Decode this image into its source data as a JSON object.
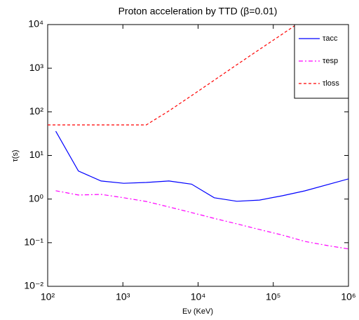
{
  "chart_data": {
    "type": "line",
    "title": "Proton acceleration by TTD (β=0.01)",
    "x_label": "Eν (KeV)",
    "y_label": "τ(s)",
    "xscale": "log",
    "yscale": "log",
    "grid": false,
    "legend": "upper right",
    "xlim": [
      100,
      1000000
    ],
    "ylim": [
      0.01,
      10000
    ],
    "xticks": [
      {
        "value": 100,
        "label": "10²"
      },
      {
        "value": 1000,
        "label": "10³"
      },
      {
        "value": 10000,
        "label": "10⁴"
      },
      {
        "value": 100000,
        "label": "10⁵"
      },
      {
        "value": 1000000,
        "label": "10⁶"
      }
    ],
    "yticks": [
      {
        "value": 0.01,
        "label": "10⁻²"
      },
      {
        "value": 0.1,
        "label": "10⁻¹"
      },
      {
        "value": 1,
        "label": "10⁰"
      },
      {
        "value": 10,
        "label": "10¹"
      },
      {
        "value": 100,
        "label": "10²"
      },
      {
        "value": 1000,
        "label": "10³"
      },
      {
        "value": 10000,
        "label": "10⁴"
      }
    ],
    "series": [
      {
        "name": "τacc",
        "color": "#0000ff",
        "dash": "solid",
        "x": [
          128,
          256,
          512,
          1024,
          2048,
          4096,
          8192,
          16384,
          32768,
          65536,
          131072,
          262144,
          1000000
        ],
        "values": [
          36,
          4.4,
          2.6,
          2.3,
          2.4,
          2.6,
          2.2,
          1.07,
          0.89,
          0.95,
          1.19,
          1.54,
          2.9
        ]
      },
      {
        "name": "τesp",
        "color": "#ff00ff",
        "dash": "dashdot",
        "x": [
          128,
          256,
          512,
          1024,
          2048,
          4096,
          8192,
          16384,
          32768,
          65536,
          131072,
          262144,
          524288,
          1000000
        ],
        "values": [
          1.55,
          1.24,
          1.28,
          1.07,
          0.88,
          0.66,
          0.49,
          0.36,
          0.27,
          0.2,
          0.15,
          0.107,
          0.086,
          0.072
        ]
      },
      {
        "name": "τloss",
        "color": "#ff0000",
        "dash": "dashed",
        "x": [
          100,
          2048,
          4096,
          8192,
          16384,
          32768,
          65536,
          131072,
          262144
        ],
        "values": [
          50,
          50,
          105,
          235,
          530,
          1200,
          2700,
          6000,
          13500
        ]
      }
    ]
  }
}
